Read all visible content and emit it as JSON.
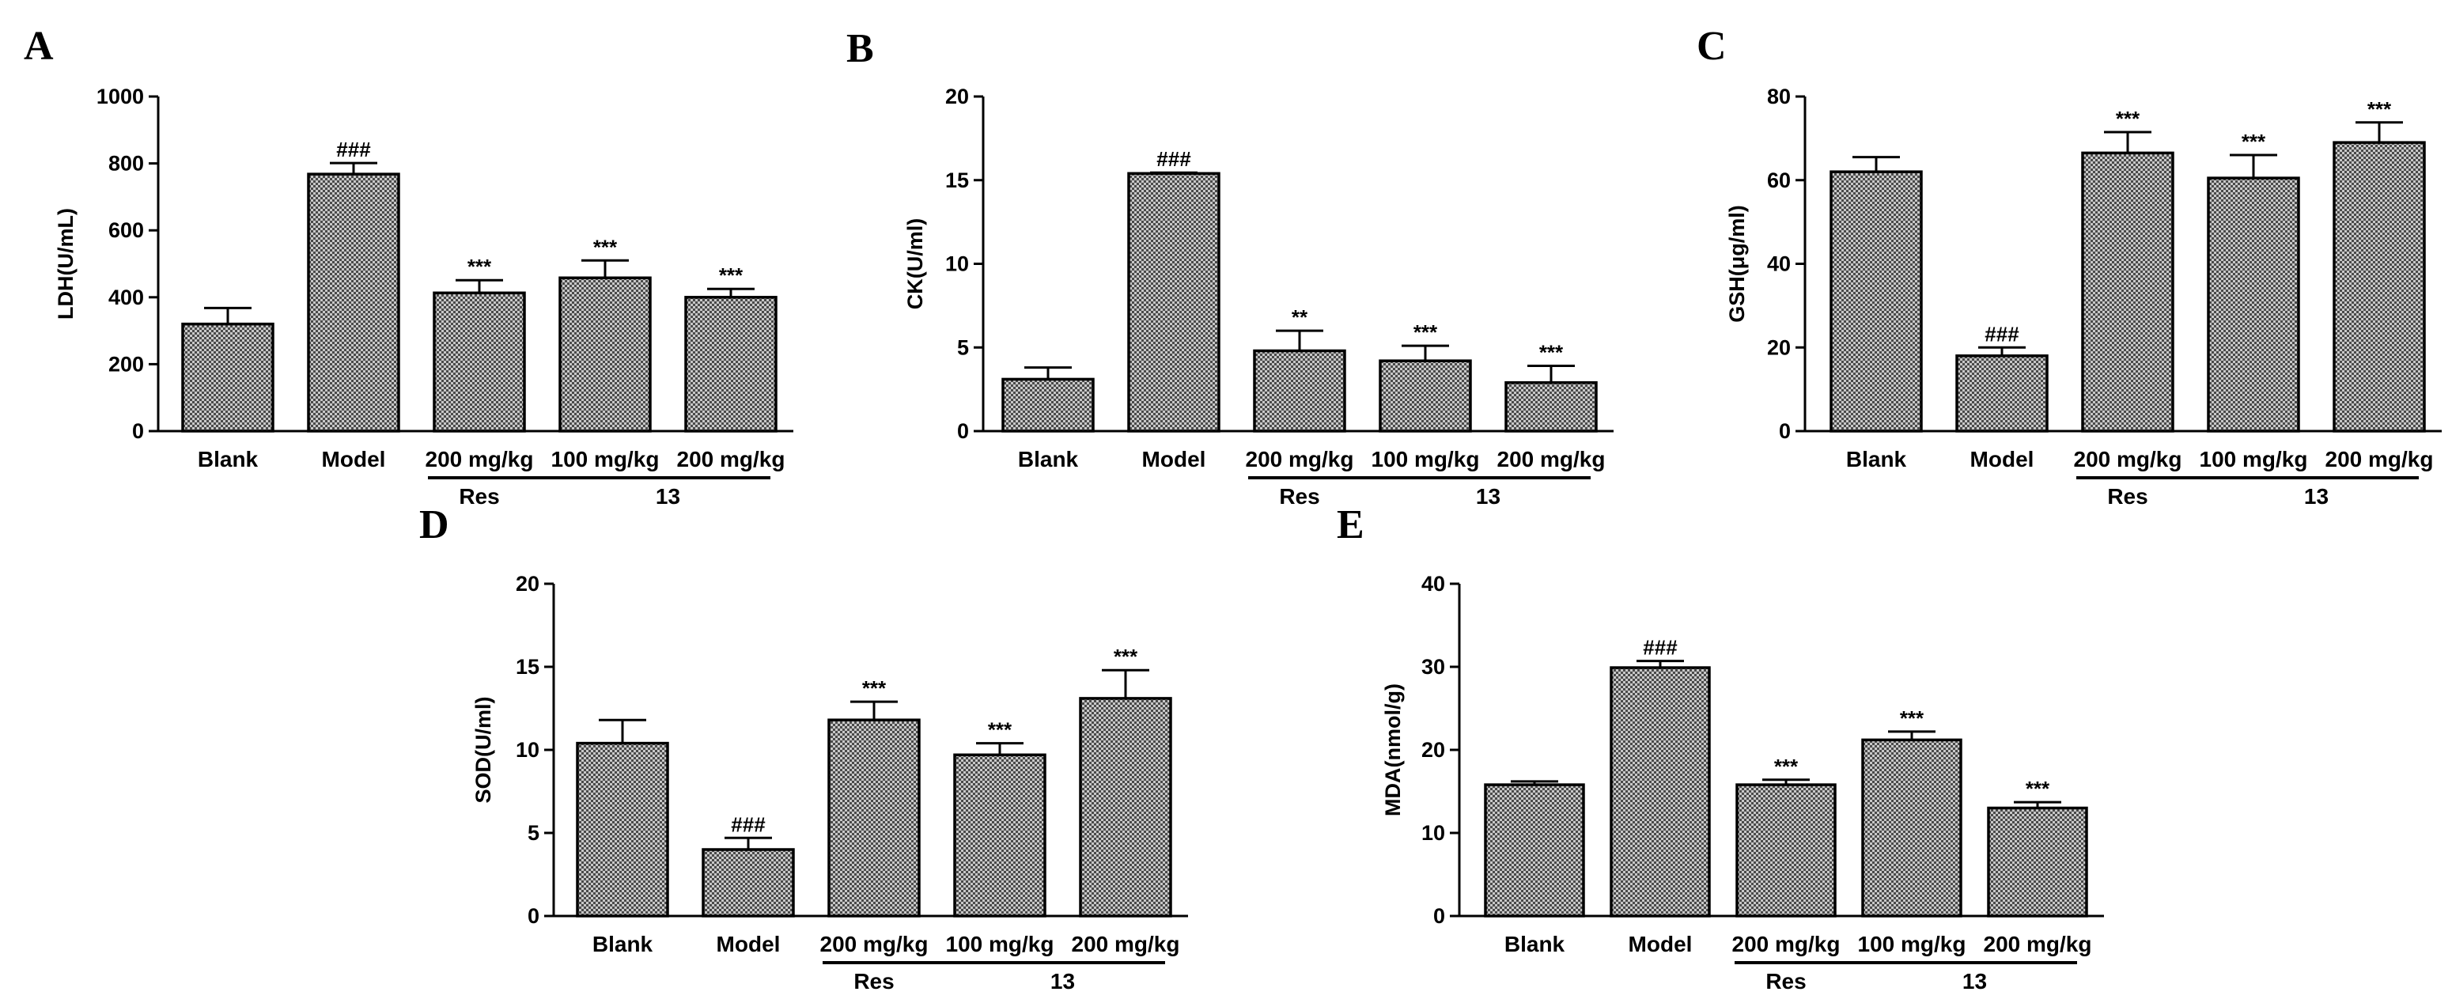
{
  "chart_data": [
    {
      "panel": "A",
      "type": "bar",
      "ylabel": "LDH(U/mL)",
      "ylim": [
        0,
        1000
      ],
      "yticks": [
        0,
        200,
        400,
        600,
        800,
        1000
      ],
      "categories": [
        "Blank",
        "Model",
        "200 mg/kg",
        "100 mg/kg",
        "200 mg/kg"
      ],
      "values": [
        320,
        768,
        413,
        458,
        400
      ],
      "errors": [
        48,
        33,
        38,
        52,
        25
      ],
      "significance": [
        "",
        "###",
        "***",
        "***",
        "***"
      ],
      "groups": [
        {
          "label": "Res",
          "categories": [
            2
          ]
        },
        {
          "label": "13",
          "categories": [
            3,
            4
          ]
        }
      ]
    },
    {
      "panel": "B",
      "type": "bar",
      "ylabel": "CK(U/ml)",
      "ylim": [
        0,
        20
      ],
      "yticks": [
        0,
        5,
        10,
        15,
        20
      ],
      "categories": [
        "Blank",
        "Model",
        "200 mg/kg",
        "100 mg/kg",
        "200 mg/kg"
      ],
      "values": [
        3.1,
        15.4,
        4.8,
        4.2,
        2.9
      ],
      "errors": [
        0.7,
        0.05,
        1.2,
        0.9,
        1.0
      ],
      "significance": [
        "",
        "###",
        "**",
        "***",
        "***"
      ],
      "groups": [
        {
          "label": "Res",
          "categories": [
            2
          ]
        },
        {
          "label": "13",
          "categories": [
            3,
            4
          ]
        }
      ]
    },
    {
      "panel": "C",
      "type": "bar",
      "ylabel": "GSH(μg/ml)",
      "ylim": [
        0,
        80
      ],
      "yticks": [
        0,
        20,
        40,
        60,
        80
      ],
      "categories": [
        "Blank",
        "Model",
        "200 mg/kg",
        "100 mg/kg",
        "200 mg/kg"
      ],
      "values": [
        62,
        18,
        66.5,
        60.5,
        69
      ],
      "errors": [
        3.5,
        2,
        5,
        5.5,
        4.8
      ],
      "significance": [
        "",
        "###",
        "***",
        "***",
        "***"
      ],
      "groups": [
        {
          "label": "Res",
          "categories": [
            2
          ]
        },
        {
          "label": "13",
          "categories": [
            3,
            4
          ]
        }
      ]
    },
    {
      "panel": "D",
      "type": "bar",
      "ylabel": "SOD(U/ml)",
      "ylim": [
        0,
        20
      ],
      "yticks": [
        0,
        5,
        10,
        15,
        20
      ],
      "categories": [
        "Blank",
        "Model",
        "200 mg/kg",
        "100 mg/kg",
        "200 mg/kg"
      ],
      "values": [
        10.4,
        4.0,
        11.8,
        9.7,
        13.1
      ],
      "errors": [
        1.4,
        0.7,
        1.1,
        0.7,
        1.7
      ],
      "significance": [
        "",
        "###",
        "***",
        "***",
        "***"
      ],
      "groups": [
        {
          "label": "Res",
          "categories": [
            2
          ]
        },
        {
          "label": "13",
          "categories": [
            3,
            4
          ]
        }
      ]
    },
    {
      "panel": "E",
      "type": "bar",
      "ylabel": "MDA(nmol/g)",
      "ylim": [
        0,
        40
      ],
      "yticks": [
        0,
        10,
        20,
        30,
        40
      ],
      "categories": [
        "Blank",
        "Model",
        "200 mg/kg",
        "100 mg/kg",
        "200 mg/kg"
      ],
      "values": [
        15.8,
        29.9,
        15.8,
        21.2,
        13
      ],
      "errors": [
        0.4,
        0.8,
        0.6,
        1.0,
        0.7
      ],
      "significance": [
        "",
        "###",
        "***",
        "***",
        "***"
      ],
      "groups": [
        {
          "label": "Res",
          "categories": [
            2
          ]
        },
        {
          "label": "13",
          "categories": [
            3,
            4
          ]
        }
      ]
    }
  ]
}
